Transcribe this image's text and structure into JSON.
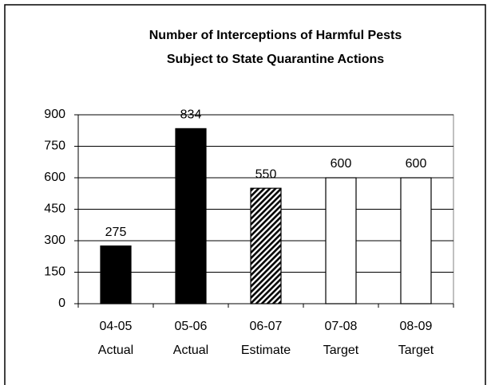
{
  "chart_data": {
    "type": "bar",
    "title": [
      "Number of Interceptions of Harmful Pests",
      "Subject to State Quarantine Actions"
    ],
    "categories": [
      [
        "04-05",
        "Actual"
      ],
      [
        "05-06",
        "Actual"
      ],
      [
        "06-07",
        "Estimate"
      ],
      [
        "07-08",
        "Target"
      ],
      [
        "08-09",
        "Target"
      ]
    ],
    "values": [
      275,
      834,
      550,
      600,
      600
    ],
    "colors": [
      "#000000",
      "#000000",
      "#000000",
      "#ffffff",
      "#ffffff"
    ],
    "hatch": [
      false,
      false,
      true,
      false,
      false
    ],
    "ylim": [
      0,
      900
    ],
    "yticks": [
      0,
      150,
      300,
      450,
      600,
      750,
      900
    ],
    "grid": true
  }
}
